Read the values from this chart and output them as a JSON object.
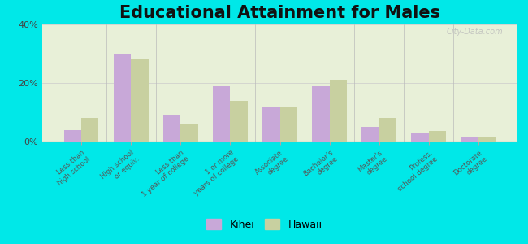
{
  "title": "Educational Attainment for Males",
  "categories": [
    "Less than\nhigh school",
    "High school\nor equiv.",
    "Less than\n1 year of college",
    "1 or more\nyears of college",
    "Associate\ndegree",
    "Bachelor's\ndegree",
    "Master's\ndegree",
    "Profess.\nschool degree",
    "Doctorate\ndegree"
  ],
  "kihei_values": [
    4,
    30,
    9,
    19,
    12,
    19,
    5,
    3,
    1.5
  ],
  "hawaii_values": [
    8,
    28,
    6,
    14,
    12,
    21,
    8,
    3.5,
    1.5
  ],
  "kihei_color": "#c8a8d8",
  "hawaii_color": "#c8d0a0",
  "background_color": "#e8f0d8",
  "outer_background": "#00e8e8",
  "ylim": [
    0,
    40
  ],
  "yticks": [
    0,
    20,
    40
  ],
  "ytick_labels": [
    "0%",
    "20%",
    "40%"
  ],
  "title_fontsize": 15,
  "bar_width": 0.35,
  "legend_labels": [
    "Kihei",
    "Hawaii"
  ],
  "watermark": "City-Data.com"
}
